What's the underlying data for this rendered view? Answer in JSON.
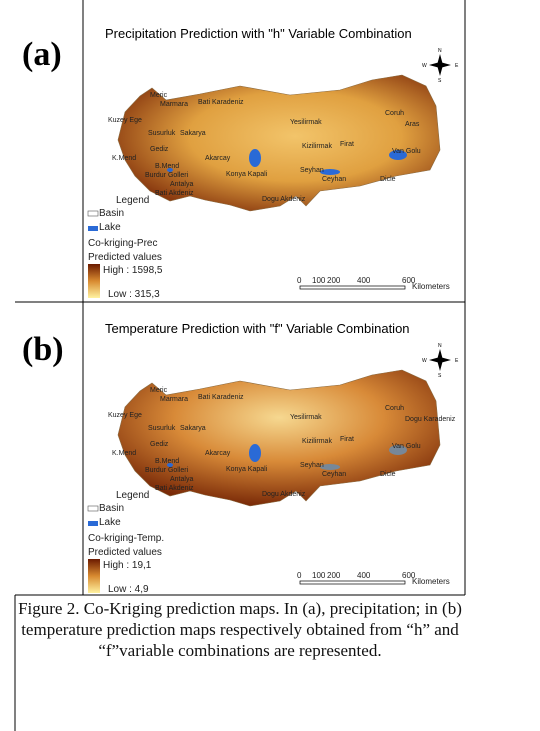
{
  "panels": [
    {
      "tag": "(a)",
      "title": "Precipitation Prediction with \"h\" Variable Combination",
      "basins": [
        "Meric",
        "Marmara",
        "Bati Karadeniz",
        "Kuzey Ege",
        "Susurluk",
        "Sakarya",
        "Yesilirmak",
        "Coruh",
        "Aras",
        "Kizilirmak",
        "Firat",
        "Van Golu",
        "K.Mend",
        "Gediz",
        "Akarcay",
        "B.Mend",
        "Burdur Golleri",
        "Konya Kapali",
        "Seyhan",
        "Ceyhan",
        "Antalya",
        "Bati Akdeniz",
        "Dogu Akdeniz",
        "Dicle"
      ],
      "legend": {
        "title": "Legend",
        "items": [
          "Basin",
          "Lake"
        ],
        "layer": "Co-kriging-Prec",
        "subtitle": "Predicted values",
        "high": "High : 1598,5",
        "low": "Low : 315,3"
      },
      "scale": {
        "ticks": [
          "0",
          "100",
          "200",
          "400",
          "600"
        ],
        "unit": "Kilometers"
      },
      "compass": [
        "N",
        "E",
        "S",
        "W"
      ]
    },
    {
      "tag": "(b)",
      "title": "Temperature Prediction with \"f\" Variable Combination",
      "basins": [
        "Meric",
        "Marmara",
        "Bati Karadeniz",
        "Kuzey Ege",
        "Susurluk",
        "Sakarya",
        "Yesilirmak",
        "Coruh",
        "Dogu Karadeniz",
        "Kizilirmak",
        "Firat",
        "Van Golu",
        "K.Mend",
        "Gediz",
        "Akarcay",
        "B.Mend",
        "Burdur Golleri",
        "Konya Kapali",
        "Seyhan",
        "Ceyhan",
        "Antalya",
        "Bati Akdeniz",
        "Dogu Akdeniz",
        "Dicle"
      ],
      "legend": {
        "title": "Legend",
        "items": [
          "Basin",
          "Lake"
        ],
        "layer": "Co-kriging-Temp.",
        "subtitle": "Predicted values",
        "high": "High : 19,1",
        "low": "Low : 4,9"
      },
      "scale": {
        "ticks": [
          "0",
          "100",
          "200",
          "400",
          "600"
        ],
        "unit": "Kilometers"
      },
      "compass": [
        "N",
        "E",
        "S",
        "W"
      ]
    }
  ],
  "caption": "Figure 2. Co-Kriging prediction maps. In (a), precipitation; in (b) temperature prediction maps respectively obtained from “h” and “f”variable combinations are represented."
}
